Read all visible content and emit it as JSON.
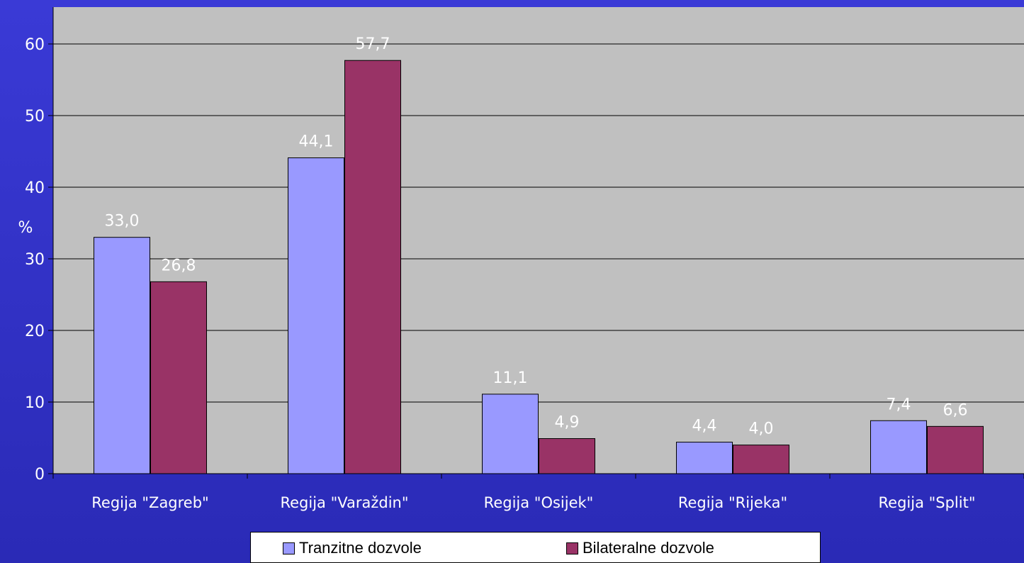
{
  "chart_data": {
    "type": "bar",
    "categories": [
      "Regija \"Zagreb\"",
      "Regija \"Varaždin\"",
      "Regija \"Osijek\"",
      "Regija \"Rijeka\"",
      "Regija \"Split\""
    ],
    "series": [
      {
        "name": "Tranzitne dozvole",
        "values": [
          33.0,
          44.1,
          11.1,
          4.4,
          7.4
        ],
        "labels": [
          "33,0",
          "44,1",
          "11,1",
          "4,4",
          "7,4"
        ],
        "color": "#9999ff"
      },
      {
        "name": "Bilateralne dozvole",
        "values": [
          26.8,
          57.7,
          4.9,
          4.0,
          6.6
        ],
        "labels": [
          "26,8",
          "57,7",
          "4,9",
          "4,0",
          "6,6"
        ],
        "color": "#993366"
      }
    ],
    "ylabel": "%",
    "ylim": [
      0,
      60
    ],
    "yticks": [
      0,
      10,
      20,
      30,
      40,
      50,
      60
    ],
    "grid": true,
    "plot_background": "#c0c0c0",
    "legend_position": "bottom"
  }
}
